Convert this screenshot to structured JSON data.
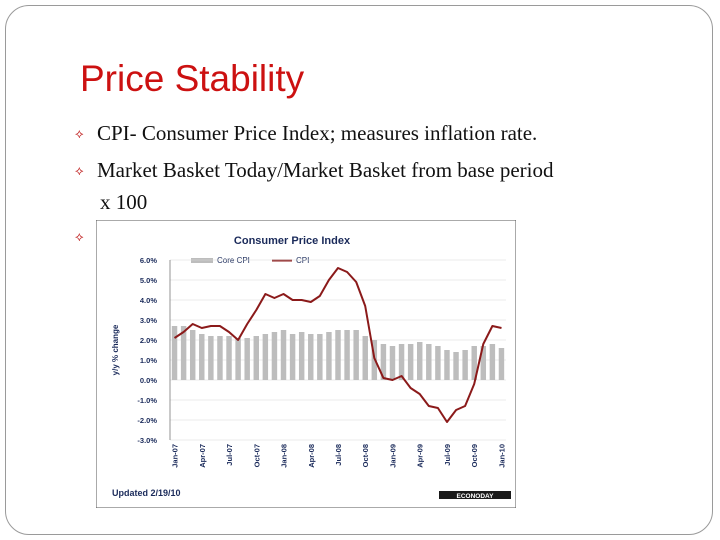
{
  "slide": {
    "title": "Price Stability",
    "bullets": [
      "CPI- Consumer Price Index; measures inflation rate.",
      "Market Basket Today/Market Basket from base period",
      "x 100"
    ],
    "bullet_marker": "⟡"
  },
  "chart_data": {
    "type": "bar+line",
    "title": "Consumer Price Index",
    "ylabel": "y/y % change",
    "ylim": [
      -3.0,
      6.0
    ],
    "yticks": [
      "6.0%",
      "5.0%",
      "4.0%",
      "3.0%",
      "2.0%",
      "1.0%",
      "0.0%",
      "-1.0%",
      "-2.0%",
      "-3.0%"
    ],
    "ytick_values": [
      6,
      5,
      4,
      3,
      2,
      1,
      0,
      -1,
      -2,
      -3
    ],
    "xtick_labels": [
      "Jan-07",
      "Apr-07",
      "Jul-07",
      "Oct-07",
      "Jan-08",
      "Apr-08",
      "Jul-08",
      "Oct-08",
      "Jan-09",
      "Apr-09",
      "Jul-09",
      "Oct-09",
      "Jan-10"
    ],
    "legend": [
      "Core CPI",
      "CPI"
    ],
    "footer": "Updated 2/19/10",
    "brand": "ECONODAY",
    "months": [
      "Jan-07",
      "Feb-07",
      "Mar-07",
      "Apr-07",
      "May-07",
      "Jun-07",
      "Jul-07",
      "Aug-07",
      "Sep-07",
      "Oct-07",
      "Nov-07",
      "Dec-07",
      "Jan-08",
      "Feb-08",
      "Mar-08",
      "Apr-08",
      "May-08",
      "Jun-08",
      "Jul-08",
      "Aug-08",
      "Sep-08",
      "Oct-08",
      "Nov-08",
      "Dec-08",
      "Jan-09",
      "Feb-09",
      "Mar-09",
      "Apr-09",
      "May-09",
      "Jun-09",
      "Jul-09",
      "Aug-09",
      "Sep-09",
      "Oct-09",
      "Nov-09",
      "Dec-09",
      "Jan-10"
    ],
    "series": [
      {
        "name": "Core CPI",
        "kind": "bar",
        "color": "#bdbdbd",
        "values": [
          2.7,
          2.7,
          2.5,
          2.3,
          2.2,
          2.2,
          2.2,
          2.1,
          2.1,
          2.2,
          2.3,
          2.4,
          2.5,
          2.3,
          2.4,
          2.3,
          2.3,
          2.4,
          2.5,
          2.5,
          2.5,
          2.2,
          2.0,
          1.8,
          1.7,
          1.8,
          1.8,
          1.9,
          1.8,
          1.7,
          1.5,
          1.4,
          1.5,
          1.7,
          1.7,
          1.8,
          1.6
        ]
      },
      {
        "name": "CPI",
        "kind": "line",
        "color": "#8b1a1a",
        "values": [
          2.1,
          2.4,
          2.8,
          2.6,
          2.7,
          2.7,
          2.4,
          2.0,
          2.8,
          3.5,
          4.3,
          4.1,
          4.3,
          4.0,
          4.0,
          3.9,
          4.2,
          5.0,
          5.6,
          5.4,
          4.9,
          3.7,
          1.1,
          0.1,
          0.0,
          0.2,
          -0.4,
          -0.7,
          -1.3,
          -1.4,
          -2.1,
          -1.5,
          -1.3,
          -0.2,
          1.8,
          2.7,
          2.6
        ]
      }
    ]
  }
}
